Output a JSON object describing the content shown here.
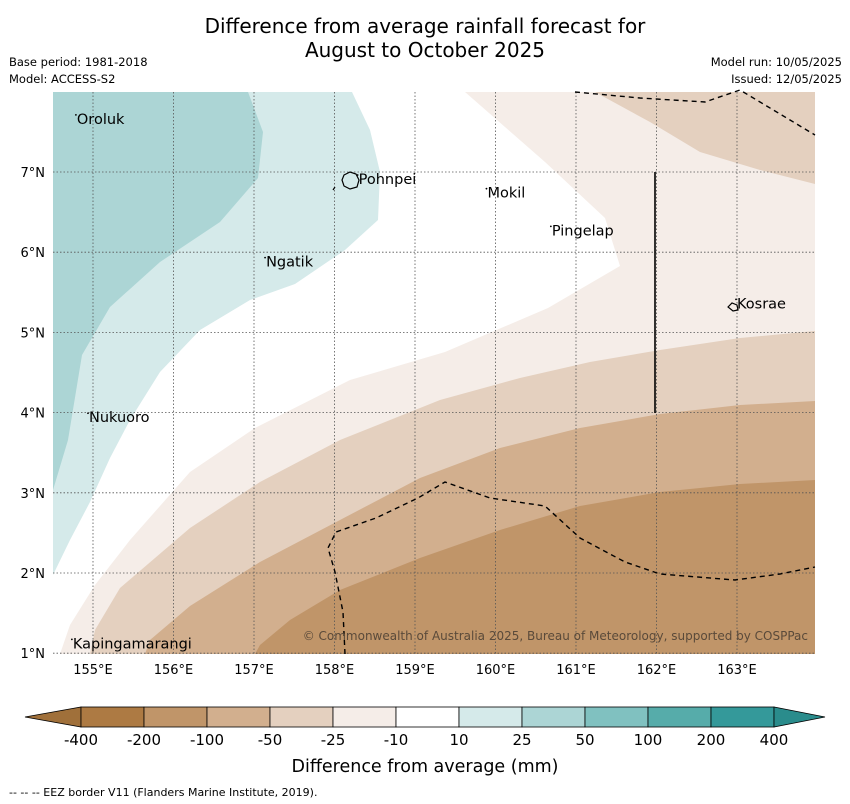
{
  "title_line1": "Difference from average rainfall forecast for",
  "title_line2": "August to October 2025",
  "meta_left": [
    "Base period: 1981-2018",
    "Model: ACCESS-S2"
  ],
  "meta_right": [
    "Model run: 10/05/2025",
    "Issued: 12/05/2025"
  ],
  "map": {
    "lon_ticks": [
      "155°E",
      "156°E",
      "157°E",
      "158°E",
      "159°E",
      "160°E",
      "161°E",
      "162°E",
      "163°E"
    ],
    "lat_ticks": [
      "7°N",
      "6°N",
      "5°N",
      "4°N",
      "3°N",
      "2°N",
      "1°N"
    ],
    "places": [
      {
        "name": "Oroluk",
        "lon": 154.8,
        "lat": 7.6
      },
      {
        "name": "Pohnpei",
        "lon": 158.3,
        "lat": 6.85
      },
      {
        "name": "Mokil",
        "lon": 159.9,
        "lat": 6.68
      },
      {
        "name": "Pingelap",
        "lon": 160.7,
        "lat": 6.21
      },
      {
        "name": "Ngatik",
        "lon": 157.15,
        "lat": 5.82
      },
      {
        "name": "Kosrae",
        "lon": 163.0,
        "lat": 5.3
      },
      {
        "name": "Nukuoro",
        "lon": 154.95,
        "lat": 3.88
      },
      {
        "name": "Kapingamarangi",
        "lon": 154.75,
        "lat": 1.06
      }
    ],
    "copyright": "© Commonwealth of Australia 2025, Bureau of Meteorology, supported by COSPPac"
  },
  "colorbar": {
    "labels": [
      "-400",
      "-200",
      "-100",
      "-50",
      "-25",
      "-10",
      "10",
      "25",
      "50",
      "100",
      "200",
      "400"
    ],
    "colors": [
      "#ad7a43",
      "#c09569",
      "#d2af8e",
      "#e4d0bf",
      "#f5ede8",
      "#ffffff",
      "#d5eaea",
      "#acd5d5",
      "#80c1c0",
      "#56acaa",
      "#34999a"
    ],
    "title": "Difference from average (mm)"
  },
  "footnote": "--  --  -- EEZ border V11 (Flanders Marine Institute, 2019)."
}
